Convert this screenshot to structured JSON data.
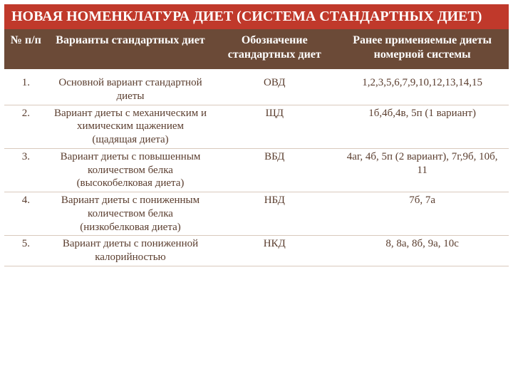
{
  "colors": {
    "title_bg": "#c0392b",
    "title_fg": "#ffffff",
    "header_bg": "#6b4a37",
    "header_fg": "#ffffff",
    "body_bg": "#ffffff",
    "body_fg": "#5a3d2e",
    "row_border": "#d9c9bd"
  },
  "title": "НОВАЯ НОМЕНКЛАТУРА ДИЕТ (СИСТЕМА СТАНДАРТНЫХ ДИЕТ)",
  "columns": [
    {
      "key": "num",
      "label": "№ п/п"
    },
    {
      "key": "variant",
      "label": "Варианты стандартных диет"
    },
    {
      "key": "abbr",
      "label": "Обозначение стандартных диет"
    },
    {
      "key": "old",
      "label": "Ранее применяемые диеты номерной системы"
    }
  ],
  "rows": [
    {
      "num": "1.",
      "variant": "Основной вариант стандартной диеты",
      "abbr": "ОВД",
      "old": "1,2,3,5,6,7,9,10,12,13,14,15"
    },
    {
      "num": "2.",
      "variant": "Вариант диеты с механическим и химическим щажением (щадящая диета)",
      "abbr": "ЩД",
      "old": "1б,4б,4в, 5п (1 вариант)"
    },
    {
      "num": "3.",
      "variant": "Вариант диеты с повышенным количеством белка (высокобелковая диета)",
      "abbr": "ВБД",
      "old": "4аг, 4б, 5п (2 вариант), 7г,9б, 10б, 11"
    },
    {
      "num": "4.",
      "variant": "Вариант диеты с пониженным количеством белка (низкобелковая диета)",
      "abbr": "НБД",
      "old": "7б, 7а"
    },
    {
      "num": "5.",
      "variant": "Вариант диеты с пониженной калорийностью",
      "abbr": "НКД",
      "old": "8, 8а, 8б, 9а, 10с"
    }
  ]
}
